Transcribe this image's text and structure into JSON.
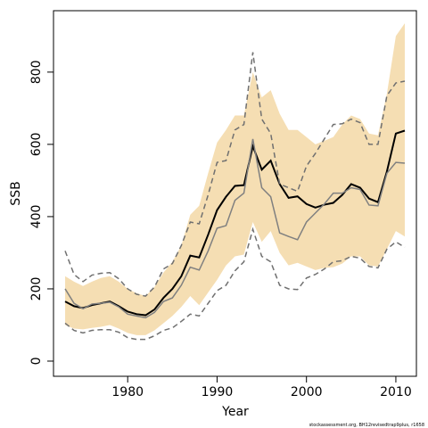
{
  "chart_data": {
    "type": "line",
    "x_label": "Year",
    "y_label": "SSB",
    "footer": "stockassessment.org, BH12revisedtrap9plus, r1658",
    "x": [
      1973,
      1974,
      1975,
      1976,
      1977,
      1978,
      1979,
      1980,
      1981,
      1982,
      1983,
      1984,
      1985,
      1986,
      1987,
      1988,
      1989,
      1990,
      1991,
      1992,
      1993,
      1994,
      1995,
      1996,
      1997,
      1998,
      1999,
      2000,
      2001,
      2002,
      2003,
      2004,
      2005,
      2006,
      2007,
      2008,
      2009,
      2010,
      2011
    ],
    "band": {
      "color": "#f5deb3",
      "upper": [
        235,
        220,
        208,
        220,
        230,
        235,
        220,
        200,
        188,
        180,
        205,
        245,
        275,
        320,
        405,
        430,
        520,
        605,
        640,
        680,
        680,
        800,
        730,
        750,
        685,
        640,
        640,
        620,
        600,
        610,
        620,
        655,
        680,
        670,
        630,
        625,
        740,
        900,
        935
      ],
      "lower": [
        100,
        90,
        88,
        92,
        95,
        100,
        90,
        78,
        72,
        72,
        85,
        105,
        125,
        150,
        180,
        155,
        190,
        225,
        265,
        290,
        295,
        385,
        330,
        360,
        300,
        265,
        272,
        262,
        252,
        258,
        260,
        270,
        290,
        290,
        265,
        262,
        310,
        360,
        345
      ]
    },
    "series": [
      {
        "color": "#000000",
        "width": 2,
        "dash": "solid",
        "values": [
          165,
          152,
          147,
          155,
          160,
          165,
          152,
          137,
          130,
          127,
          143,
          175,
          200,
          235,
          292,
          287,
          350,
          418,
          455,
          485,
          487,
          595,
          530,
          555,
          490,
          452,
          456,
          435,
          425,
          433,
          438,
          460,
          490,
          480,
          450,
          440,
          525,
          630,
          638
        ]
      },
      {
        "color": "#808080",
        "width": 1.5,
        "dash": "solid",
        "values": [
          200,
          160,
          145,
          158,
          160,
          163,
          150,
          130,
          125,
          120,
          135,
          165,
          175,
          210,
          260,
          252,
          305,
          368,
          375,
          445,
          465,
          615,
          480,
          455,
          355,
          345,
          336,
          385,
          410,
          435,
          465,
          465,
          480,
          475,
          432,
          430,
          520,
          550,
          548
        ]
      },
      {
        "color": "#707070",
        "width": 1.5,
        "dash": "dashed",
        "values": [
          305,
          240,
          220,
          238,
          243,
          245,
          228,
          200,
          185,
          180,
          205,
          255,
          270,
          320,
          385,
          380,
          460,
          550,
          555,
          640,
          655,
          855,
          670,
          630,
          490,
          480,
          470,
          540,
          575,
          615,
          655,
          657,
          670,
          660,
          600,
          600,
          735,
          770,
          775
        ]
      },
      {
        "color": "#707070",
        "width": 1.5,
        "dash": "dashed",
        "values": [
          105,
          85,
          78,
          85,
          87,
          87,
          80,
          65,
          60,
          60,
          70,
          85,
          92,
          110,
          130,
          125,
          160,
          195,
          210,
          250,
          275,
          365,
          290,
          275,
          210,
          200,
          198,
          230,
          240,
          255,
          275,
          278,
          290,
          285,
          262,
          258,
          310,
          330,
          315
        ]
      }
    ],
    "xlim": [
      1971.7,
      2012.3
    ],
    "ylim": [
      -42,
      970
    ],
    "xticks": [
      1980,
      1990,
      2000,
      2010
    ],
    "yticks": [
      0,
      200,
      400,
      600,
      800
    ]
  }
}
